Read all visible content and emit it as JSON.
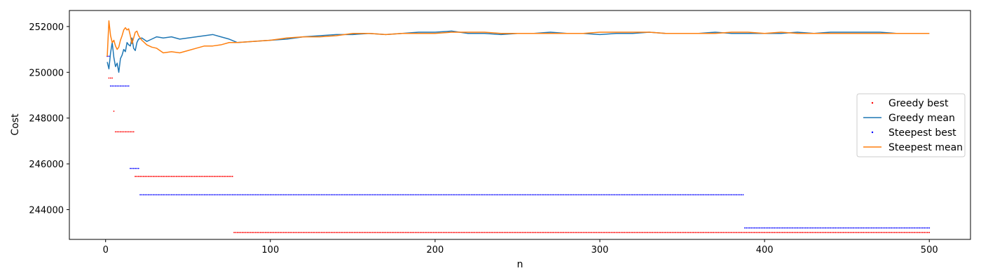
{
  "chart_data": {
    "type": "line",
    "xlabel": "n",
    "ylabel": "Cost",
    "xlim": [
      -22,
      525
    ],
    "ylim": [
      242700,
      252700
    ],
    "xticks": [
      0,
      100,
      200,
      300,
      400,
      500
    ],
    "yticks": [
      244000,
      246000,
      248000,
      250000,
      252000
    ],
    "grid": false,
    "legend_position": "center-right",
    "series": [
      {
        "name": "Greedy best",
        "kind": "step-points",
        "color": "#ff0000",
        "segments": [
          {
            "from": 1,
            "to": 1,
            "value": 250700
          },
          {
            "from": 2,
            "to": 4,
            "value": 249750
          },
          {
            "from": 5,
            "to": 5,
            "value": 248300
          },
          {
            "from": 6,
            "to": 17,
            "value": 247400
          },
          {
            "from": 18,
            "to": 77,
            "value": 245450
          },
          {
            "from": 78,
            "to": 500,
            "value": 243000
          }
        ]
      },
      {
        "name": "Greedy mean",
        "kind": "line",
        "color": "#1f77b4",
        "points": [
          [
            1,
            250450
          ],
          [
            2,
            250150
          ],
          [
            3,
            250850
          ],
          [
            4,
            251300
          ],
          [
            5,
            250650
          ],
          [
            6,
            250250
          ],
          [
            7,
            250400
          ],
          [
            8,
            250000
          ],
          [
            9,
            250600
          ],
          [
            10,
            250750
          ],
          [
            11,
            251000
          ],
          [
            12,
            250900
          ],
          [
            13,
            251300
          ],
          [
            14,
            251200
          ],
          [
            15,
            251150
          ],
          [
            16,
            251500
          ],
          [
            17,
            251050
          ],
          [
            18,
            250950
          ],
          [
            19,
            251300
          ],
          [
            20,
            251450
          ],
          [
            22,
            251500
          ],
          [
            25,
            251350
          ],
          [
            28,
            251450
          ],
          [
            31,
            251550
          ],
          [
            35,
            251500
          ],
          [
            40,
            251550
          ],
          [
            45,
            251450
          ],
          [
            50,
            251500
          ],
          [
            55,
            251550
          ],
          [
            60,
            251600
          ],
          [
            65,
            251650
          ],
          [
            70,
            251550
          ],
          [
            75,
            251450
          ],
          [
            80,
            251300
          ],
          [
            90,
            251350
          ],
          [
            100,
            251400
          ],
          [
            110,
            251450
          ],
          [
            120,
            251550
          ],
          [
            130,
            251600
          ],
          [
            140,
            251650
          ],
          [
            150,
            251650
          ],
          [
            160,
            251700
          ],
          [
            170,
            251650
          ],
          [
            180,
            251700
          ],
          [
            190,
            251750
          ],
          [
            200,
            251750
          ],
          [
            210,
            251800
          ],
          [
            220,
            251700
          ],
          [
            230,
            251700
          ],
          [
            240,
            251650
          ],
          [
            250,
            251700
          ],
          [
            260,
            251700
          ],
          [
            270,
            251750
          ],
          [
            280,
            251700
          ],
          [
            290,
            251700
          ],
          [
            300,
            251650
          ],
          [
            310,
            251700
          ],
          [
            320,
            251700
          ],
          [
            330,
            251750
          ],
          [
            340,
            251700
          ],
          [
            350,
            251700
          ],
          [
            360,
            251700
          ],
          [
            370,
            251750
          ],
          [
            380,
            251700
          ],
          [
            390,
            251700
          ],
          [
            400,
            251700
          ],
          [
            410,
            251700
          ],
          [
            420,
            251750
          ],
          [
            430,
            251700
          ],
          [
            440,
            251750
          ],
          [
            450,
            251750
          ],
          [
            460,
            251750
          ],
          [
            470,
            251750
          ],
          [
            480,
            251700
          ],
          [
            490,
            251700
          ],
          [
            500,
            251700
          ]
        ]
      },
      {
        "name": "Steepest best",
        "kind": "step-points",
        "color": "#0000ff",
        "segments": [
          {
            "from": 1,
            "to": 1,
            "value": 250700
          },
          {
            "from": 2,
            "to": 2,
            "value": 250700
          },
          {
            "from": 3,
            "to": 14,
            "value": 249400
          },
          {
            "from": 15,
            "to": 20,
            "value": 245800
          },
          {
            "from": 21,
            "to": 387,
            "value": 244650
          },
          {
            "from": 388,
            "to": 500,
            "value": 243200
          }
        ]
      },
      {
        "name": "Steepest mean",
        "kind": "line",
        "color": "#ff7f0e",
        "points": [
          [
            1,
            250700
          ],
          [
            2,
            252250
          ],
          [
            3,
            251600
          ],
          [
            4,
            251300
          ],
          [
            5,
            251400
          ],
          [
            6,
            251150
          ],
          [
            7,
            251000
          ],
          [
            8,
            251100
          ],
          [
            9,
            251400
          ],
          [
            10,
            251600
          ],
          [
            11,
            251850
          ],
          [
            12,
            251950
          ],
          [
            13,
            251850
          ],
          [
            14,
            251900
          ],
          [
            15,
            251600
          ],
          [
            16,
            251250
          ],
          [
            17,
            251500
          ],
          [
            18,
            251750
          ],
          [
            19,
            251800
          ],
          [
            20,
            251600
          ],
          [
            22,
            251400
          ],
          [
            25,
            251200
          ],
          [
            28,
            251100
          ],
          [
            31,
            251050
          ],
          [
            35,
            250850
          ],
          [
            40,
            250900
          ],
          [
            45,
            250850
          ],
          [
            50,
            250950
          ],
          [
            55,
            251050
          ],
          [
            60,
            251150
          ],
          [
            65,
            251150
          ],
          [
            70,
            251200
          ],
          [
            75,
            251300
          ],
          [
            80,
            251300
          ],
          [
            90,
            251350
          ],
          [
            100,
            251400
          ],
          [
            110,
            251500
          ],
          [
            120,
            251550
          ],
          [
            130,
            251550
          ],
          [
            140,
            251600
          ],
          [
            150,
            251700
          ],
          [
            160,
            251700
          ],
          [
            170,
            251650
          ],
          [
            180,
            251700
          ],
          [
            190,
            251700
          ],
          [
            200,
            251700
          ],
          [
            210,
            251750
          ],
          [
            220,
            251750
          ],
          [
            230,
            251750
          ],
          [
            240,
            251700
          ],
          [
            250,
            251700
          ],
          [
            260,
            251700
          ],
          [
            270,
            251700
          ],
          [
            280,
            251700
          ],
          [
            290,
            251700
          ],
          [
            300,
            251750
          ],
          [
            310,
            251750
          ],
          [
            320,
            251750
          ],
          [
            330,
            251750
          ],
          [
            340,
            251700
          ],
          [
            350,
            251700
          ],
          [
            360,
            251700
          ],
          [
            370,
            251700
          ],
          [
            380,
            251750
          ],
          [
            390,
            251750
          ],
          [
            400,
            251700
          ],
          [
            410,
            251750
          ],
          [
            420,
            251700
          ],
          [
            430,
            251700
          ],
          [
            440,
            251700
          ],
          [
            450,
            251700
          ],
          [
            460,
            251700
          ],
          [
            470,
            251700
          ],
          [
            480,
            251700
          ],
          [
            490,
            251700
          ],
          [
            500,
            251700
          ]
        ]
      }
    ]
  }
}
